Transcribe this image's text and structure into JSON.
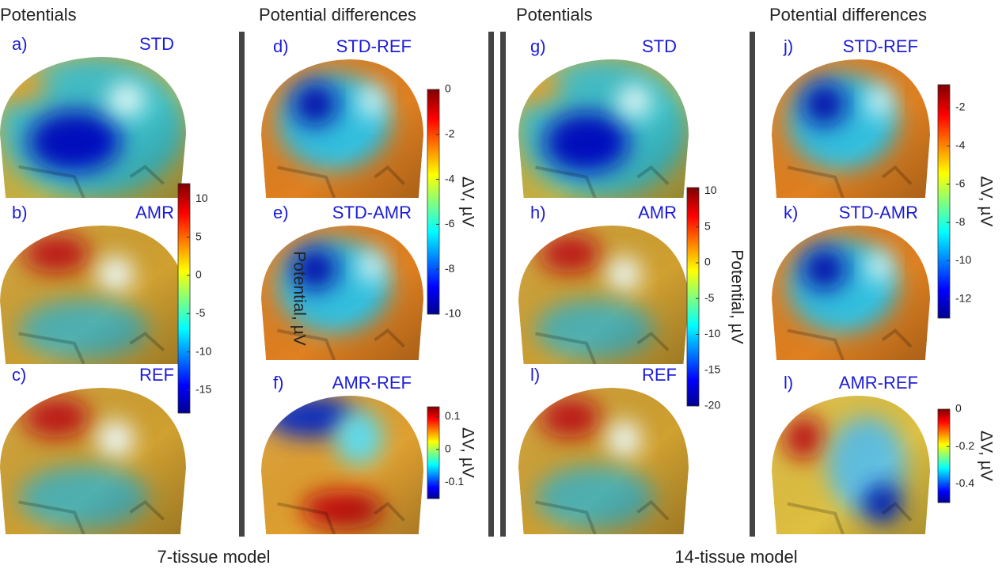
{
  "headings": [
    "Potentials",
    "Potential differences",
    "Potentials",
    "Potential differences"
  ],
  "models": [
    "7-tissue model",
    "14-tissue model"
  ],
  "panels": [
    {
      "label": "a)",
      "name": "STD"
    },
    {
      "label": "b)",
      "name": "AMR"
    },
    {
      "label": "c)",
      "name": "REF"
    },
    {
      "label": "d)",
      "name": "STD-REF"
    },
    {
      "label": "e)",
      "name": "STD-AMR"
    },
    {
      "label": "f)",
      "name": "AMR-REF"
    },
    {
      "label": "g)",
      "name": "STD"
    },
    {
      "label": "h)",
      "name": "AMR"
    },
    {
      "label": "l)",
      "name": "REF"
    },
    {
      "label": "j)",
      "name": "STD-REF"
    },
    {
      "label": "k)",
      "name": "STD-AMR"
    },
    {
      "label": "l)",
      "name": "AMR-REF"
    }
  ],
  "colorbars": [
    {
      "label": "Potential, µV",
      "lim": [
        -18,
        12
      ],
      "ticks": [
        10,
        5,
        0,
        -5,
        -10,
        -15
      ]
    },
    {
      "label": "ΔV, µV",
      "lim": [
        -10,
        0
      ],
      "ticks": [
        0,
        -2,
        -4,
        -6,
        -8,
        -10
      ]
    },
    {
      "label": "ΔV, µV",
      "lim": [
        -0.15,
        0.13
      ],
      "ticks": [
        0.1,
        0,
        -0.1
      ]
    },
    {
      "label": "Potential, µV",
      "lim": [
        -20,
        10.5
      ],
      "ticks": [
        10,
        5,
        0,
        -5,
        -10,
        -15,
        -20
      ]
    },
    {
      "label": "ΔV, µV",
      "lim": [
        -13,
        -0.8
      ],
      "ticks": [
        -2,
        -4,
        -6,
        -8,
        -10,
        -12
      ]
    },
    {
      "label": "ΔV, µV",
      "lim": [
        -0.5,
        0
      ],
      "ticks": [
        0,
        -0.2,
        -0.4
      ]
    }
  ]
}
